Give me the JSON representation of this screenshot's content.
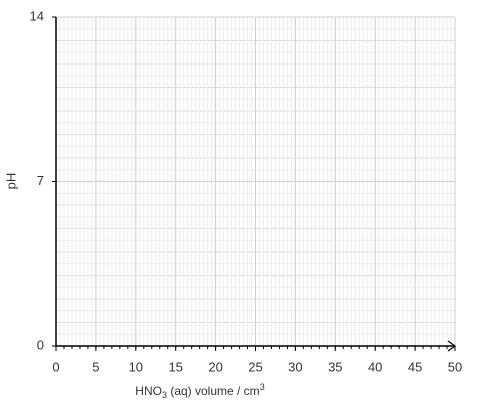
{
  "chart_data": {
    "type": "line",
    "xlabel": [
      "HNO",
      "3",
      " (aq) volume / cm",
      "3"
    ],
    "ylabel": "pH",
    "xlim": [
      0,
      50
    ],
    "xticks": [
      0,
      5,
      10,
      15,
      20,
      25,
      30,
      35,
      40,
      45,
      50
    ],
    "ylim": [
      0,
      14
    ],
    "yticks": [
      0,
      7,
      14
    ],
    "xminor_step": 1,
    "yminor_step": 0.5,
    "grid": true
  }
}
